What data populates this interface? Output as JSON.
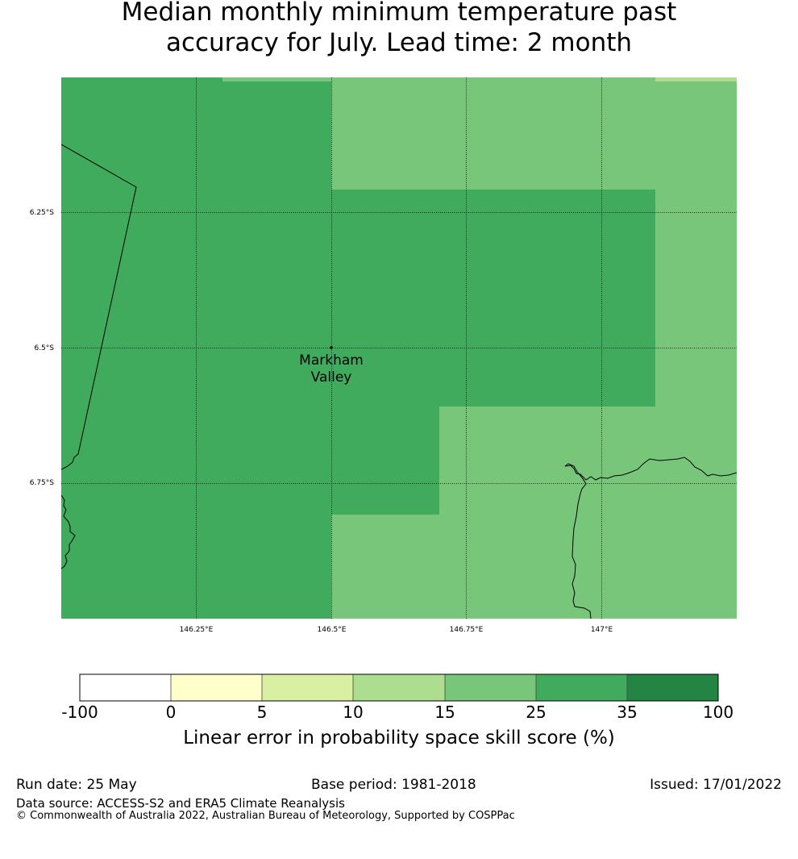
{
  "title_line1": "Median monthly minimum temperature past",
  "title_line2": "accuracy for July. Lead time: 2 month",
  "map": {
    "lon_ticks": [
      "146.25°E",
      "146.5°E",
      "146.75°E",
      "147°E"
    ],
    "lat_ticks": [
      "6.25°S",
      "6.5°S",
      "6.75°S"
    ],
    "place": {
      "name_line1": "Markham",
      "name_line2": "Valley",
      "lon": 146.5,
      "lat": -6.5
    },
    "colors": {
      "green_35": "#41ab5d",
      "green_25": "#78c679",
      "green_15": "#addd8e",
      "coast": "#000000"
    },
    "grid": "dotted"
  },
  "colorbar": {
    "tick_labels": [
      "-100",
      "0",
      "5",
      "10",
      "15",
      "25",
      "35",
      "100"
    ],
    "colors": [
      "#ffffff",
      "#ffffcc",
      "#d9f0a3",
      "#addd8e",
      "#78c679",
      "#41ab5d",
      "#238443"
    ],
    "label": "Linear error in probability space skill score (%)"
  },
  "footer": {
    "run_date": "Run date: 25 May",
    "base_period": "Base period: 1981-2018",
    "issued": "Issued: 17/01/2022",
    "data_source": "Data source: ACCESS-S2 and ERA5 Climate Reanalysis",
    "copyright": "© Commonwealth of Australia 2022, Australian Bureau of Meteorology, Supported by COSPPac"
  }
}
